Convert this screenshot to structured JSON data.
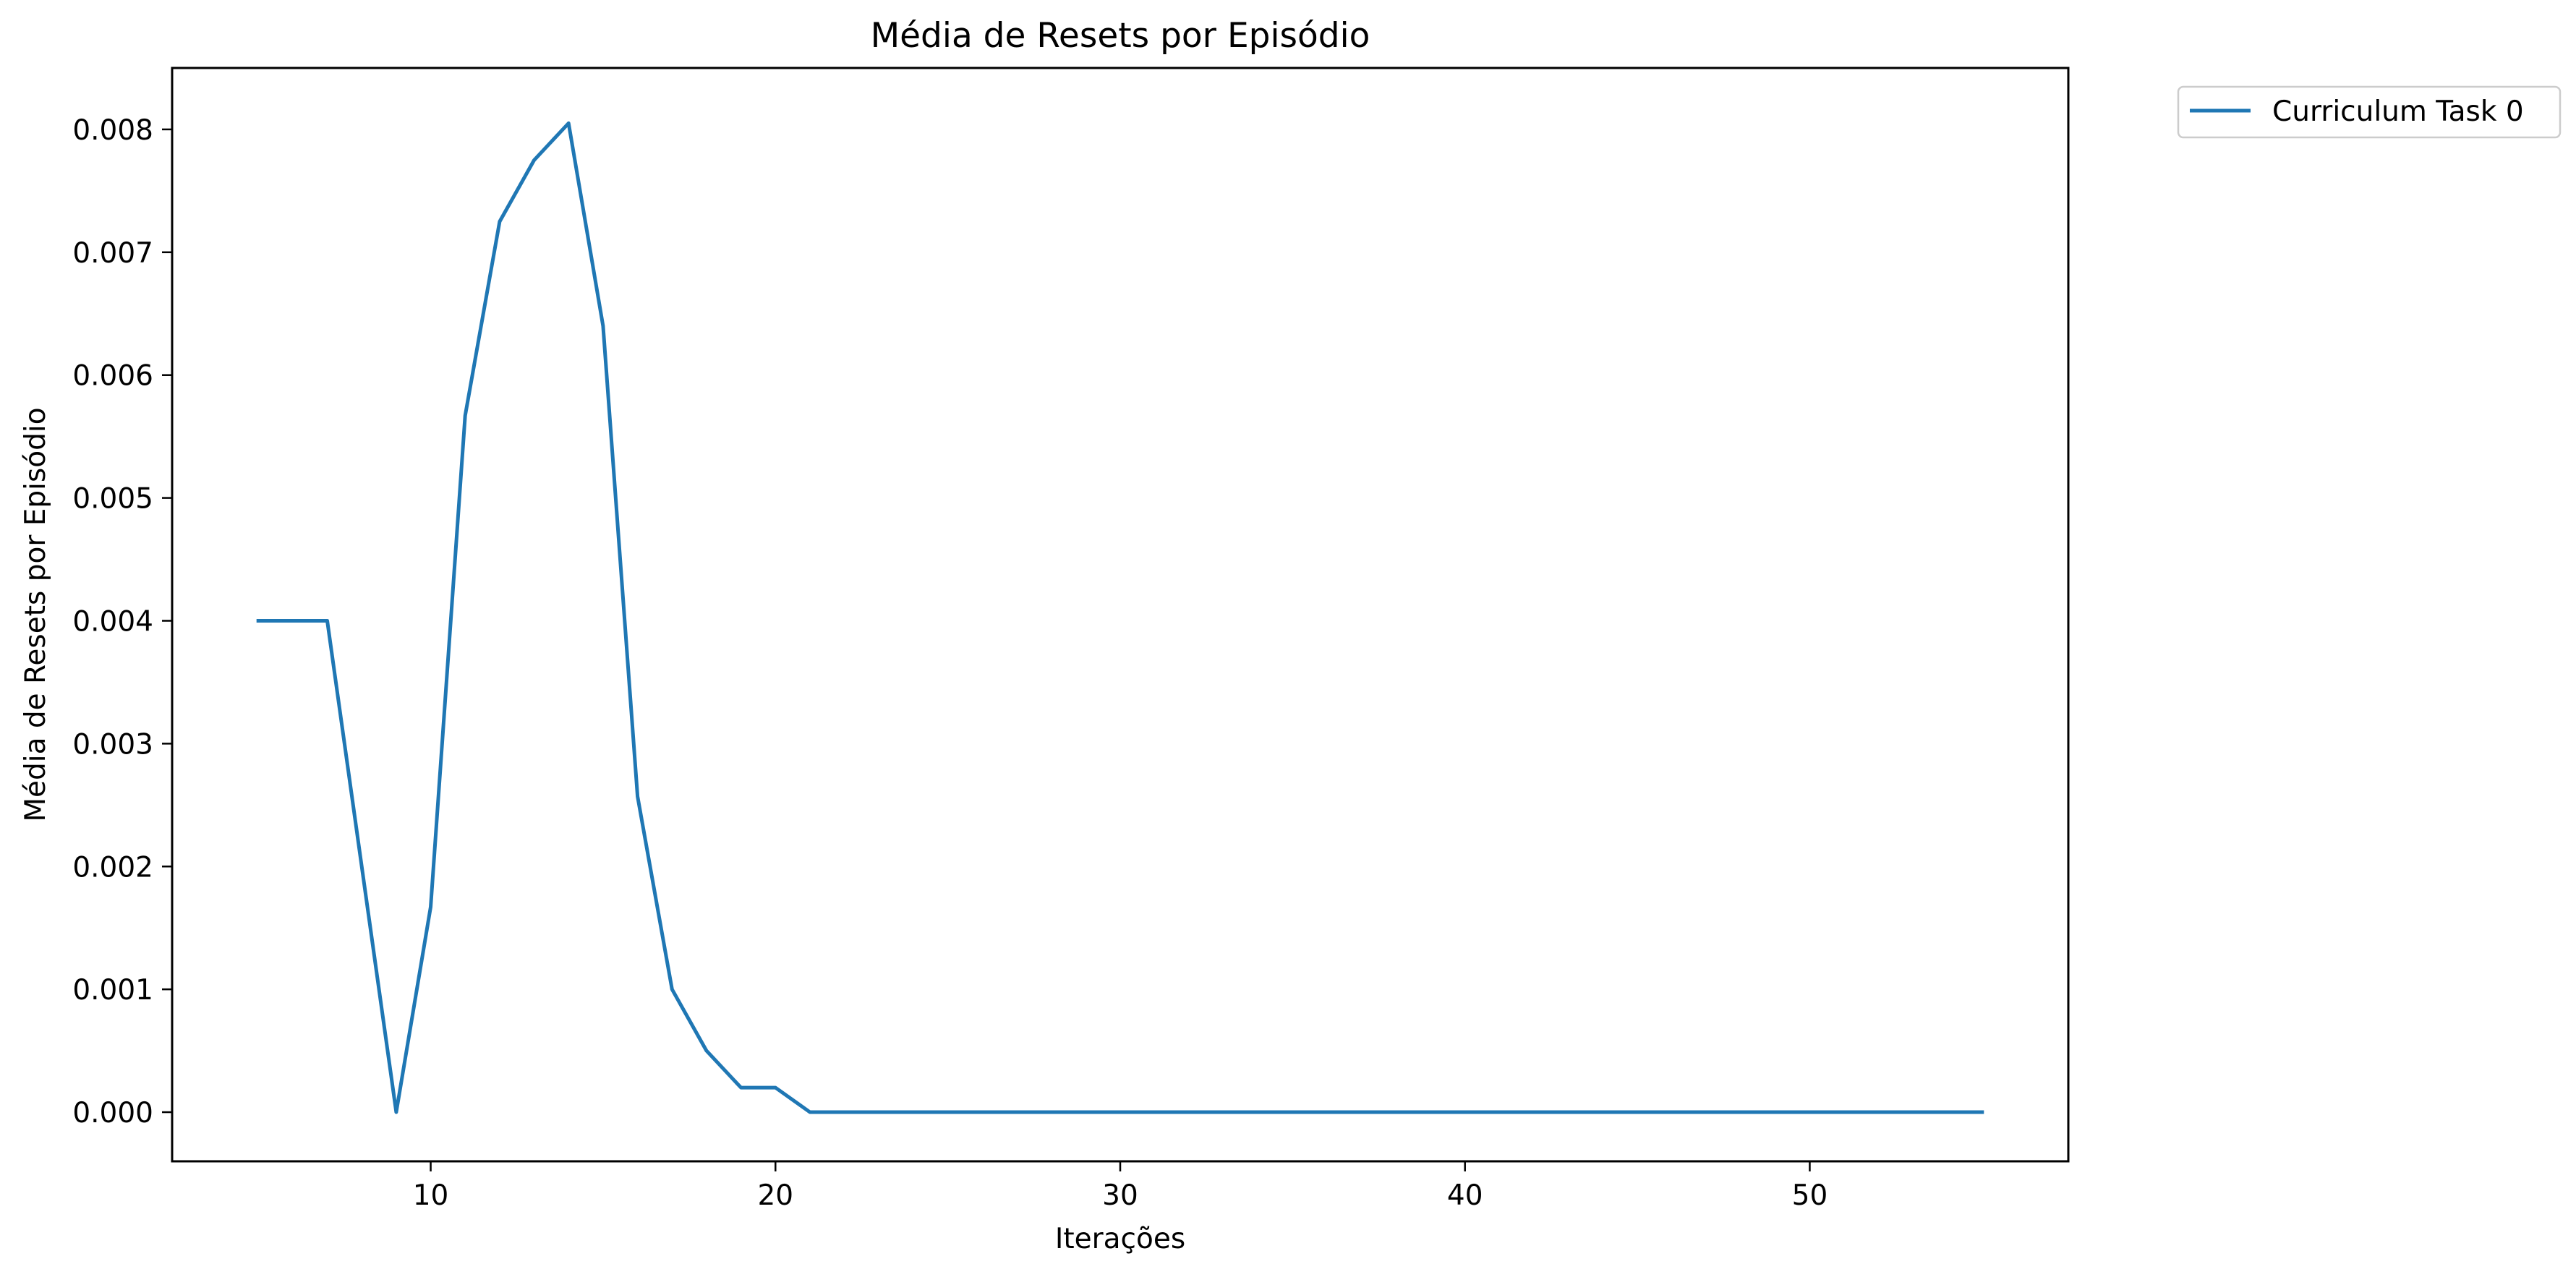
{
  "chart_data": {
    "type": "line",
    "title": "Média de Resets por Episódio",
    "xlabel": "Iterações",
    "ylabel": "Média de Resets por Episódio",
    "xlim": [
      2.5,
      57.5
    ],
    "ylim": [
      -0.0004,
      0.0085
    ],
    "xticks": [
      10,
      20,
      30,
      40,
      50
    ],
    "xtick_labels": [
      "10",
      "20",
      "30",
      "40",
      "50"
    ],
    "yticks": [
      0,
      0.001,
      0.002,
      0.003,
      0.004,
      0.005,
      0.006,
      0.007,
      0.008
    ],
    "ytick_labels": [
      "0.000",
      "0.001",
      "0.002",
      "0.003",
      "0.004",
      "0.005",
      "0.006",
      "0.007",
      "0.008"
    ],
    "grid": false,
    "legend_position": "outside-top-right",
    "series": [
      {
        "name": "Curriculum Task 0",
        "color": "#1f77b4",
        "x": [
          5,
          6,
          7,
          8,
          9,
          10,
          11,
          12,
          13,
          14,
          15,
          16,
          17,
          18,
          19,
          20,
          21,
          22,
          23,
          24,
          25,
          26,
          27,
          28,
          29,
          30,
          31,
          32,
          33,
          34,
          35,
          36,
          37,
          38,
          39,
          40,
          41,
          42,
          43,
          44,
          45,
          46,
          47,
          48,
          49,
          50,
          51,
          52,
          53,
          54,
          55
        ],
        "y": [
          0.004,
          0.004,
          0.004,
          0.002,
          0.0,
          0.00167,
          0.00567,
          0.00725,
          0.00775,
          0.00805,
          0.0064,
          0.00257,
          0.001,
          0.0005,
          0.0002,
          0.0002,
          0.0,
          0.0,
          0.0,
          0.0,
          0.0,
          0.0,
          0.0,
          0.0,
          0.0,
          0.0,
          0.0,
          0.0,
          0.0,
          0.0,
          0.0,
          0.0,
          0.0,
          0.0,
          0.0,
          0.0,
          0.0,
          0.0,
          0.0,
          0.0,
          0.0,
          0.0,
          0.0,
          0.0,
          0.0,
          0.0,
          0.0,
          0.0,
          0.0,
          0.0,
          0.0
        ]
      }
    ]
  }
}
